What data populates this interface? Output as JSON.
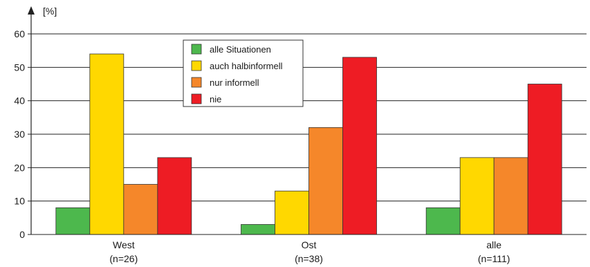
{
  "chart_data": {
    "type": "bar",
    "ylabel": "[%]",
    "ylim": [
      0,
      60
    ],
    "yticks": [
      0,
      10,
      20,
      30,
      40,
      50,
      60
    ],
    "grid": true,
    "legend_position": "top-center",
    "categories": [
      {
        "name": "West",
        "n": "(n=26)"
      },
      {
        "name": "Ost",
        "n": "(n=38)"
      },
      {
        "name": "alle",
        "n": "(n=111)"
      }
    ],
    "series": [
      {
        "name": "alle Situationen",
        "color": "#4db84d",
        "values": [
          8,
          3,
          8
        ]
      },
      {
        "name": "auch halbinformell",
        "color": "#ffd800",
        "values": [
          54,
          13,
          23
        ]
      },
      {
        "name": "nur informell",
        "color": "#f5872a",
        "values": [
          15,
          32,
          23
        ]
      },
      {
        "name": "nie",
        "color": "#ee1c24",
        "values": [
          23,
          53,
          45
        ]
      }
    ]
  }
}
